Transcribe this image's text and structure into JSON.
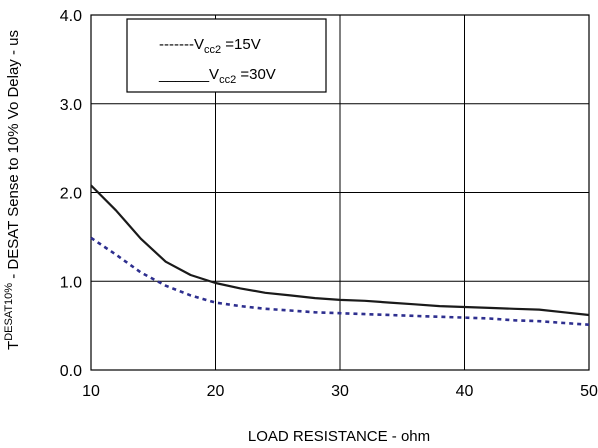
{
  "chart_data": {
    "type": "line",
    "xlabel": "LOAD RESISTANCE - ohm",
    "ylabel": {
      "prefix": "T",
      "superscript": "DESAT10%",
      "rest": " - DESAT Sense to 10% Vo Delay - us"
    },
    "xlim": [
      10,
      50
    ],
    "ylim": [
      0,
      4
    ],
    "x_ticks": [
      "10",
      "20",
      "30",
      "40",
      "50"
    ],
    "y_ticks": [
      "0.0",
      "1.0",
      "2.0",
      "3.0",
      "4.0"
    ],
    "grid": true,
    "legend_position": "top-left",
    "series": [
      {
        "name": "Vcc2 =15V",
        "legend_prefix": "-------V",
        "legend_sub": "cc2",
        "legend_suffix": " =15V",
        "style": "dashed",
        "color": "#2e2f8f",
        "x": [
          10,
          12,
          14,
          16,
          18,
          20,
          22,
          24,
          26,
          28,
          30,
          32,
          34,
          36,
          38,
          40,
          42,
          44,
          46,
          48,
          50
        ],
        "y": [
          1.49,
          1.3,
          1.1,
          0.95,
          0.84,
          0.76,
          0.72,
          0.69,
          0.67,
          0.65,
          0.64,
          0.63,
          0.62,
          0.61,
          0.6,
          0.59,
          0.58,
          0.56,
          0.55,
          0.53,
          0.51
        ]
      },
      {
        "name": "Vcc2 =30V",
        "legend_prefix": "______V",
        "legend_sub": "cc2",
        "legend_suffix": " =30V",
        "style": "solid",
        "color": "#1a1a1a",
        "x": [
          10,
          12,
          14,
          16,
          18,
          20,
          22,
          24,
          26,
          28,
          30,
          32,
          34,
          36,
          38,
          40,
          42,
          44,
          46,
          48,
          50
        ],
        "y": [
          2.08,
          1.8,
          1.48,
          1.22,
          1.07,
          0.98,
          0.92,
          0.87,
          0.84,
          0.81,
          0.79,
          0.78,
          0.76,
          0.74,
          0.72,
          0.71,
          0.7,
          0.69,
          0.68,
          0.65,
          0.62
        ]
      }
    ]
  }
}
